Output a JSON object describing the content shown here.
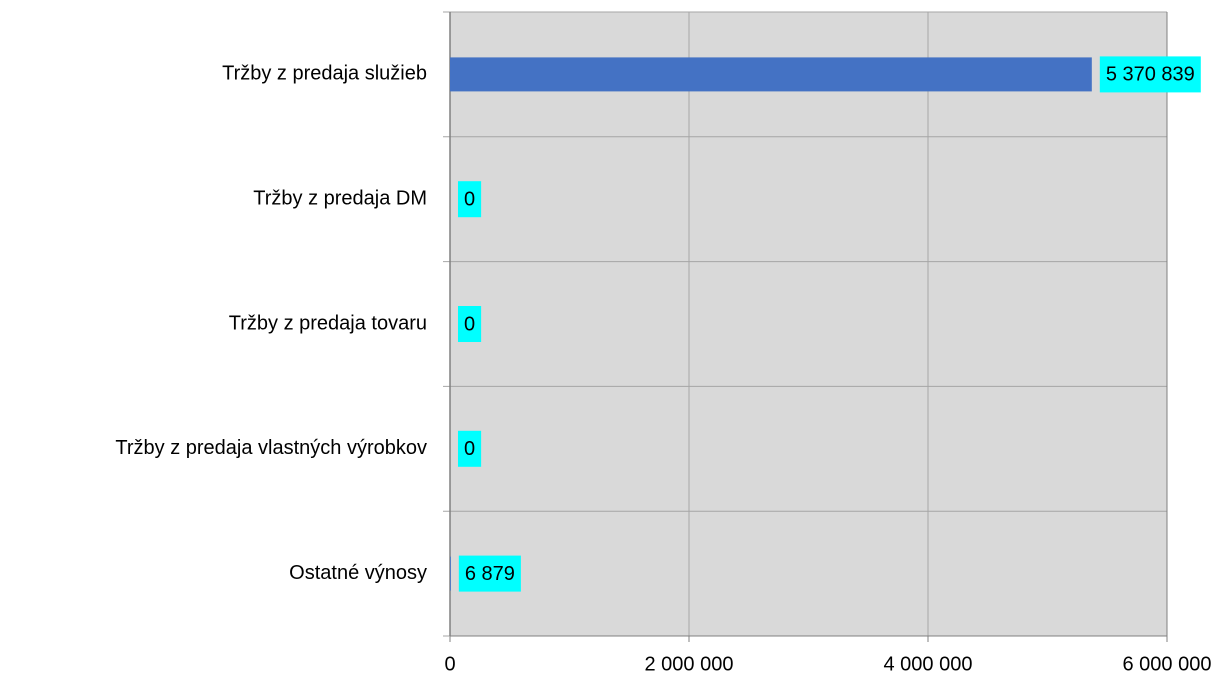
{
  "chart_data": {
    "type": "barh",
    "categories": [
      "Tržby z predaja služieb",
      "Tržby z predaja DM",
      "Tržby z predaja tovaru",
      "Tržby z predaja vlastných výrobkov",
      "Ostatné výnosy"
    ],
    "values": [
      5370839,
      0,
      0,
      0,
      6879
    ],
    "value_labels": [
      "5 370 839",
      "0",
      "0",
      "0",
      "6 879"
    ],
    "color": "#4472c4",
    "xlim": [
      0,
      6000000
    ],
    "xticks": [
      0,
      {
        "value": 2000000,
        "label": "2 000 000"
      },
      {
        "value": 4000000,
        "label": "4 000 000"
      },
      {
        "value": 6000000,
        "label": "6 000 000"
      }
    ],
    "grid": true
  }
}
